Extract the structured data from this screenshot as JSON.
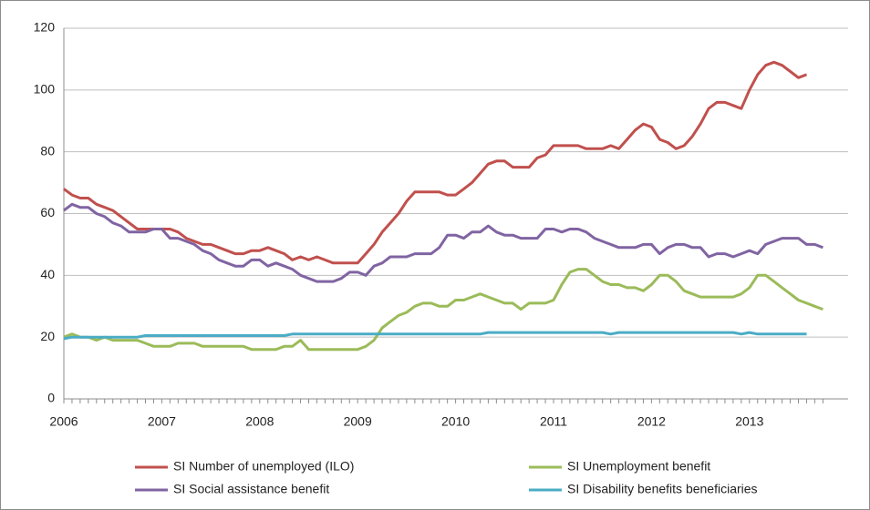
{
  "chart_data": {
    "type": "line",
    "categories": [
      "2006",
      null,
      null,
      null,
      null,
      null,
      null,
      null,
      null,
      null,
      null,
      null,
      "2007",
      null,
      null,
      null,
      null,
      null,
      null,
      null,
      null,
      null,
      null,
      null,
      "2008",
      null,
      null,
      null,
      null,
      null,
      null,
      null,
      null,
      null,
      null,
      null,
      "2009",
      null,
      null,
      null,
      null,
      null,
      null,
      null,
      null,
      null,
      null,
      null,
      "2010",
      null,
      null,
      null,
      null,
      null,
      null,
      null,
      null,
      null,
      null,
      null,
      "2011",
      null,
      null,
      null,
      null,
      null,
      null,
      null,
      null,
      null,
      null,
      null,
      "2012",
      null,
      null,
      null,
      null,
      null,
      null,
      null,
      null,
      null,
      null,
      null,
      "2013",
      null,
      null,
      null,
      null,
      null,
      null,
      null,
      null,
      null
    ],
    "series": [
      {
        "name": "SI Number of unemployed (ILO)",
        "color": "#c0504d",
        "values": [
          68,
          66,
          65,
          65,
          63,
          62,
          61,
          59,
          57,
          55,
          55,
          55,
          55,
          55,
          54,
          52,
          51,
          50,
          50,
          49,
          48,
          47,
          47,
          48,
          48,
          49,
          48,
          47,
          45,
          46,
          45,
          46,
          45,
          44,
          44,
          44,
          44,
          47,
          50,
          54,
          57,
          60,
          64,
          67,
          67,
          67,
          67,
          66,
          66,
          68,
          70,
          73,
          76,
          77,
          77,
          75,
          75,
          75,
          78,
          79,
          82,
          82,
          82,
          82,
          81,
          81,
          81,
          82,
          81,
          84,
          87,
          89,
          88,
          84,
          83,
          81,
          82,
          85,
          89,
          94,
          96,
          96,
          95,
          94,
          100,
          105,
          108,
          109,
          108,
          106,
          104,
          105,
          null,
          null
        ]
      },
      {
        "name": "SI Unemployment benefit",
        "color": "#9bbb59",
        "values": [
          20,
          21,
          20,
          20,
          19,
          20,
          19,
          19,
          19,
          19,
          18,
          17,
          17,
          17,
          18,
          18,
          18,
          17,
          17,
          17,
          17,
          17,
          17,
          16,
          16,
          16,
          16,
          17,
          17,
          19,
          16,
          16,
          16,
          16,
          16,
          16,
          16,
          17,
          19,
          23,
          25,
          27,
          28,
          30,
          31,
          31,
          30,
          30,
          32,
          32,
          33,
          34,
          33,
          32,
          31,
          31,
          29,
          31,
          31,
          31,
          32,
          37,
          41,
          42,
          42,
          40,
          38,
          37,
          37,
          36,
          36,
          35,
          37,
          40,
          40,
          38,
          35,
          34,
          33,
          33,
          33,
          33,
          33,
          34,
          36,
          40,
          40,
          38,
          36,
          34,
          32,
          31,
          30,
          29
        ]
      },
      {
        "name": "SI Social assistance benefit",
        "color": "#8064a2",
        "values": [
          61,
          63,
          62,
          62,
          60,
          59,
          57,
          56,
          54,
          54,
          54,
          55,
          55,
          52,
          52,
          51,
          50,
          48,
          47,
          45,
          44,
          43,
          43,
          45,
          45,
          43,
          44,
          43,
          42,
          40,
          39,
          38,
          38,
          38,
          39,
          41,
          41,
          40,
          43,
          44,
          46,
          46,
          46,
          47,
          47,
          47,
          49,
          53,
          53,
          52,
          54,
          54,
          56,
          54,
          53,
          53,
          52,
          52,
          52,
          55,
          55,
          54,
          55,
          55,
          54,
          52,
          51,
          50,
          49,
          49,
          49,
          50,
          50,
          47,
          49,
          50,
          50,
          49,
          49,
          46,
          47,
          47,
          46,
          47,
          48,
          47,
          50,
          51,
          52,
          52,
          52,
          50,
          50,
          49
        ]
      },
      {
        "name": "SI Disability benefits beneficiaries",
        "color": "#4bacc6",
        "values": [
          19.5,
          20,
          20,
          20,
          20,
          20,
          20,
          20,
          20,
          20,
          20.5,
          20.5,
          20.5,
          20.5,
          20.5,
          20.5,
          20.5,
          20.5,
          20.5,
          20.5,
          20.5,
          20.5,
          20.5,
          20.5,
          20.5,
          20.5,
          20.5,
          20.5,
          21,
          21,
          21,
          21,
          21,
          21,
          21,
          21,
          21,
          21,
          21,
          21,
          21,
          21,
          21,
          21,
          21,
          21,
          21,
          21,
          21,
          21,
          21,
          21,
          21.5,
          21.5,
          21.5,
          21.5,
          21.5,
          21.5,
          21.5,
          21.5,
          21.5,
          21.5,
          21.5,
          21.5,
          21.5,
          21.5,
          21.5,
          21,
          21.5,
          21.5,
          21.5,
          21.5,
          21.5,
          21.5,
          21.5,
          21.5,
          21.5,
          21.5,
          21.5,
          21.5,
          21.5,
          21.5,
          21.5,
          21,
          21.5,
          21,
          21,
          21,
          21,
          21,
          21,
          21,
          null,
          null
        ]
      }
    ],
    "ylim": [
      0,
      120
    ],
    "yticks": [
      0,
      20,
      40,
      60,
      80,
      100,
      120
    ],
    "grid": true,
    "legend": "bottom"
  }
}
